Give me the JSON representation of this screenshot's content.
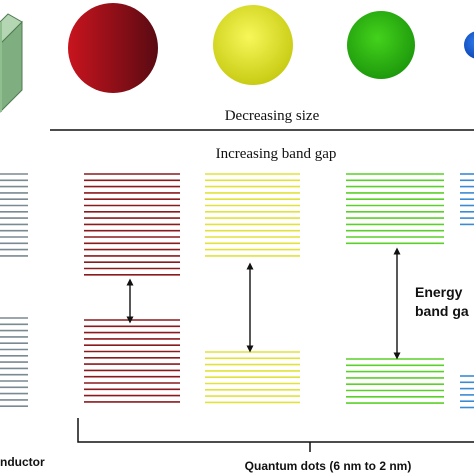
{
  "labels": {
    "decreasing_size": "Decreasing size",
    "increasing_band_gap": "Increasing band gap",
    "energy_band_gap_line1": "Energy",
    "energy_band_gap_line2": "band ga",
    "semiconductor_partial": "nductor",
    "quantum_dots": "Quantum dots (6 nm to 2 nm)"
  },
  "dots": [
    {
      "name": "red-dot",
      "color_light": "#c8141e",
      "color_dark": "#5a0a12"
    },
    {
      "name": "yellow-dot",
      "color_light": "#f7f75a",
      "color_dark": "#c9cc14"
    },
    {
      "name": "green-dot",
      "color_light": "#44d21c",
      "color_dark": "#1e9a0c"
    },
    {
      "name": "blue-dot",
      "color_light": "#2f7ef0",
      "color_dark": "#1048b8"
    }
  ],
  "band_colors": {
    "bulk": "#7a8a92",
    "red": "#8b1a1e",
    "yellow": "#e2e23c",
    "green": "#5cd02a",
    "blue": "#3a8ad6"
  },
  "cube_color": "#8fbf8f"
}
